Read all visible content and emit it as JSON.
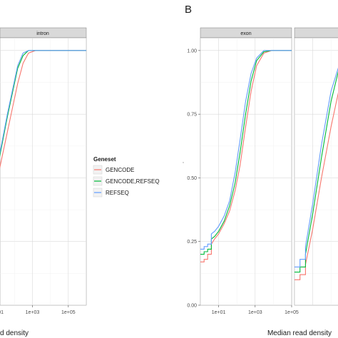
{
  "chart_data": [
    {
      "panel_label": "",
      "type": "line",
      "facet": "intron",
      "xscale": "log10",
      "xlim": [
        1,
        1000000
      ],
      "ylim": [
        0,
        1.05
      ],
      "xticks": [
        "1e+01",
        "1e+03",
        "1e+05"
      ],
      "xtick_values": [
        10,
        1000,
        100000
      ],
      "xlabel": "Median read density",
      "grid": true,
      "series": [
        {
          "name": "GENCODE",
          "color": "#f8766d",
          "points": [
            [
              1,
              0.06
            ],
            [
              2,
              0.18
            ],
            [
              4,
              0.32
            ],
            [
              10,
              0.48
            ],
            [
              20,
              0.58
            ],
            [
              40,
              0.68
            ],
            [
              80,
              0.78
            ],
            [
              150,
              0.87
            ],
            [
              300,
              0.95
            ],
            [
              600,
              0.99
            ],
            [
              1500,
              1.0
            ],
            [
              1000000,
              1.0
            ]
          ]
        },
        {
          "name": "GENCODE,REFSEQ",
          "color": "#00ba38",
          "points": [
            [
              1,
              0.1
            ],
            [
              2,
              0.22
            ],
            [
              4,
              0.36
            ],
            [
              10,
              0.52
            ],
            [
              20,
              0.63
            ],
            [
              40,
              0.74
            ],
            [
              80,
              0.84
            ],
            [
              150,
              0.93
            ],
            [
              300,
              0.98
            ],
            [
              600,
              1.0
            ],
            [
              1000000,
              1.0
            ]
          ]
        },
        {
          "name": "REFSEQ",
          "color": "#619cff",
          "points": [
            [
              1,
              0.12
            ],
            [
              2,
              0.24
            ],
            [
              4,
              0.38
            ],
            [
              10,
              0.53
            ],
            [
              20,
              0.64
            ],
            [
              40,
              0.75
            ],
            [
              80,
              0.85
            ],
            [
              150,
              0.94
            ],
            [
              300,
              0.99
            ],
            [
              600,
              1.0
            ],
            [
              1000000,
              1.0
            ]
          ]
        }
      ]
    },
    {
      "panel_label": "B",
      "type": "line",
      "facet": "exon",
      "xscale": "log10",
      "xlim": [
        1,
        100000
      ],
      "ylim": [
        0,
        1.05
      ],
      "yticks": [
        "0.00",
        "0.25",
        "0.50",
        "0.75",
        "1.00"
      ],
      "ytick_values": [
        0,
        0.25,
        0.5,
        0.75,
        1.0
      ],
      "xticks": [
        "1e+01",
        "1e+03",
        "1e+05"
      ],
      "xtick_values": [
        10,
        1000,
        100000
      ],
      "xlabel": "Median read density",
      "grid": true,
      "series": [
        {
          "name": "GENCODE",
          "color": "#f8766d",
          "points": [
            [
              1,
              0.17
            ],
            [
              1.6,
              0.17
            ],
            [
              1.6,
              0.18
            ],
            [
              2.5,
              0.18
            ],
            [
              2.5,
              0.2
            ],
            [
              4,
              0.2
            ],
            [
              4,
              0.24
            ],
            [
              6,
              0.26
            ],
            [
              10,
              0.28
            ],
            [
              20,
              0.32
            ],
            [
              40,
              0.37
            ],
            [
              80,
              0.45
            ],
            [
              150,
              0.55
            ],
            [
              300,
              0.7
            ],
            [
              600,
              0.84
            ],
            [
              1200,
              0.94
            ],
            [
              3000,
              0.99
            ],
            [
              8000,
              1.0
            ],
            [
              100000,
              1.0
            ]
          ]
        },
        {
          "name": "GENCODE,REFSEQ",
          "color": "#00ba38",
          "points": [
            [
              1,
              0.2
            ],
            [
              1.6,
              0.2
            ],
            [
              1.6,
              0.21
            ],
            [
              2.5,
              0.21
            ],
            [
              2.5,
              0.22
            ],
            [
              4,
              0.22
            ],
            [
              4,
              0.26
            ],
            [
              6,
              0.27
            ],
            [
              10,
              0.29
            ],
            [
              20,
              0.33
            ],
            [
              40,
              0.39
            ],
            [
              80,
              0.48
            ],
            [
              150,
              0.6
            ],
            [
              300,
              0.75
            ],
            [
              600,
              0.88
            ],
            [
              1200,
              0.96
            ],
            [
              3000,
              0.995
            ],
            [
              8000,
              1.0
            ],
            [
              100000,
              1.0
            ]
          ]
        },
        {
          "name": "REFSEQ",
          "color": "#619cff",
          "points": [
            [
              1,
              0.22
            ],
            [
              1.6,
              0.22
            ],
            [
              1.6,
              0.23
            ],
            [
              2.5,
              0.23
            ],
            [
              2.5,
              0.24
            ],
            [
              4,
              0.24
            ],
            [
              4,
              0.28
            ],
            [
              6,
              0.29
            ],
            [
              10,
              0.31
            ],
            [
              20,
              0.35
            ],
            [
              40,
              0.41
            ],
            [
              80,
              0.52
            ],
            [
              150,
              0.65
            ],
            [
              300,
              0.8
            ],
            [
              600,
              0.91
            ],
            [
              1200,
              0.97
            ],
            [
              3000,
              1.0
            ],
            [
              100000,
              1.0
            ]
          ]
        }
      ]
    },
    {
      "panel_label": "",
      "type": "line",
      "facet": "",
      "xscale": "log10",
      "xlim": [
        1,
        100000
      ],
      "ylim": [
        0,
        1.05
      ],
      "grid": true,
      "series": [
        {
          "name": "GENCODE",
          "color": "#f8766d",
          "points": [
            [
              1,
              0.1
            ],
            [
              2,
              0.1
            ],
            [
              2,
              0.12
            ],
            [
              4,
              0.12
            ],
            [
              4,
              0.16
            ],
            [
              10,
              0.3
            ],
            [
              30,
              0.5
            ],
            [
              100,
              0.7
            ],
            [
              300,
              0.86
            ],
            [
              1000,
              0.95
            ],
            [
              3000,
              0.99
            ],
            [
              10000,
              1.0
            ],
            [
              100000,
              1.0
            ]
          ]
        },
        {
          "name": "GENCODE,REFSEQ",
          "color": "#00ba38",
          "points": [
            [
              1,
              0.13
            ],
            [
              2,
              0.13
            ],
            [
              2,
              0.15
            ],
            [
              4,
              0.15
            ],
            [
              4,
              0.2
            ],
            [
              10,
              0.36
            ],
            [
              30,
              0.58
            ],
            [
              100,
              0.8
            ],
            [
              300,
              0.94
            ],
            [
              1000,
              0.99
            ],
            [
              3000,
              1.0
            ],
            [
              100000,
              1.0
            ]
          ]
        },
        {
          "name": "REFSEQ",
          "color": "#619cff",
          "points": [
            [
              1,
              0.15
            ],
            [
              2,
              0.15
            ],
            [
              2,
              0.18
            ],
            [
              4,
              0.18
            ],
            [
              4,
              0.23
            ],
            [
              10,
              0.4
            ],
            [
              30,
              0.63
            ],
            [
              100,
              0.84
            ],
            [
              300,
              0.95
            ],
            [
              1000,
              0.99
            ],
            [
              3000,
              1.0
            ],
            [
              100000,
              1.0
            ]
          ]
        }
      ]
    }
  ],
  "legend": {
    "title": "Geneset",
    "placement": "right",
    "entries": [
      {
        "label": "GENCODE",
        "color": "#f8766d"
      },
      {
        "label": "GENCODE,REFSEQ",
        "color": "#00ba38"
      },
      {
        "label": "REFSEQ",
        "color": "#619cff"
      }
    ]
  },
  "left_axis_title_fragment": "d density",
  "y_axis_title_mark": ","
}
